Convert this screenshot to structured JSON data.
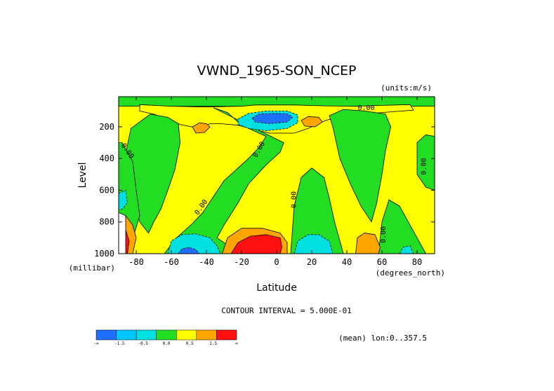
{
  "chart_data": {
    "type": "heatmap",
    "title": "VWND_1965-SON_NCEP",
    "units": "(units:m/s)",
    "xlabel": "Latitude",
    "xunits": "(degrees_north)",
    "ylabel": "Level",
    "yunits": "(millibar)",
    "x_ticks": [
      -80,
      -60,
      -40,
      -20,
      0,
      20,
      40,
      60,
      80
    ],
    "x_tick_labels": [
      "-80",
      "-60",
      "-40",
      "-20",
      "0",
      "20",
      "40",
      "60",
      "80"
    ],
    "y_ticks": [
      200,
      400,
      600,
      800,
      1000
    ],
    "y_tick_labels": [
      "200",
      "400",
      "600",
      "800",
      "1000"
    ],
    "xlim": [
      -90,
      90
    ],
    "ylim": [
      1000,
      10
    ],
    "contour_interval_text": "CONTOUR INTERVAL = 5.000E-01",
    "mean_text": "(mean) lon:0..357.5",
    "contour_labels": [
      {
        "text": "0.00",
        "lat": 51,
        "lev": 95,
        "angle": 0
      },
      {
        "text": "0.00",
        "lat": -86,
        "lev": 360,
        "angle": 55
      },
      {
        "text": "0.00",
        "lat": -9,
        "lev": 350,
        "angle": -60
      },
      {
        "text": "0.00",
        "lat": -42,
        "lev": 715,
        "angle": -55
      },
      {
        "text": "0.00",
        "lat": 11,
        "lev": 660,
        "angle": -90
      },
      {
        "text": "0.00",
        "lat": 62,
        "lev": 880,
        "angle": -90
      },
      {
        "text": "0.00",
        "lat": 85,
        "lev": 450,
        "angle": -90
      }
    ],
    "colorbar": {
      "colors": [
        "#1f6fff",
        "#00c8ff",
        "#00e0e0",
        "#22dd22",
        "#ffff00",
        "#ffa500",
        "#ff1010"
      ],
      "labels": [
        "-∞",
        "-1.5",
        "-0.5",
        "0.0",
        "0.5",
        "1.5",
        "∞"
      ]
    },
    "regions": [
      {
        "level": "yellow",
        "color": "#ffff00",
        "shape": "background"
      },
      {
        "level": "green",
        "color": "#22dd22",
        "pts": [
          [
            -90,
            10
          ],
          [
            90,
            10
          ],
          [
            90,
            70
          ],
          [
            -90,
            70
          ]
        ]
      },
      {
        "level": "yellow",
        "color": "#ffff00",
        "pts": [
          [
            -78,
            60
          ],
          [
            -60,
            70
          ],
          [
            -40,
            75
          ],
          [
            -28,
            72
          ],
          [
            -20,
            70
          ],
          [
            -12,
            62
          ],
          [
            10,
            62
          ],
          [
            28,
            68
          ],
          [
            45,
            70
          ],
          [
            60,
            65
          ],
          [
            76,
            60
          ],
          [
            78,
            95
          ],
          [
            60,
            110
          ],
          [
            38,
            130
          ],
          [
            28,
            160
          ],
          [
            18,
            210
          ],
          [
            10,
            240
          ],
          [
            -4,
            240
          ],
          [
            -12,
            220
          ],
          [
            -22,
            190
          ],
          [
            -32,
            180
          ],
          [
            -38,
            180
          ],
          [
            -44,
            210
          ],
          [
            -55,
            185
          ],
          [
            -62,
            150
          ],
          [
            -70,
            120
          ],
          [
            -78,
            100
          ]
        ]
      },
      {
        "level": "green",
        "color": "#22dd22",
        "pts": [
          [
            -83,
            210
          ],
          [
            -72,
            120
          ],
          [
            -62,
            140
          ],
          [
            -56,
            180
          ],
          [
            -55,
            300
          ],
          [
            -58,
            470
          ],
          [
            -62,
            600
          ],
          [
            -66,
            720
          ],
          [
            -70,
            800
          ],
          [
            -73,
            870
          ],
          [
            -78,
            800
          ],
          [
            -82,
            640
          ],
          [
            -87,
            420
          ]
        ]
      },
      {
        "level": "green",
        "color": "#22dd22",
        "pts": [
          [
            -88,
            300
          ],
          [
            -82,
            420
          ],
          [
            -80,
            600
          ],
          [
            -78,
            760
          ],
          [
            -84,
            980
          ],
          [
            -90,
            1000
          ],
          [
            -90,
            300
          ]
        ]
      },
      {
        "level": "green",
        "color": "#22dd22",
        "pts": [
          [
            -36,
            80
          ],
          [
            -28,
            110
          ],
          [
            -20,
            190
          ],
          [
            -12,
            230
          ],
          [
            -6,
            260
          ],
          [
            -10,
            330
          ],
          [
            -16,
            400
          ],
          [
            -22,
            460
          ],
          [
            -30,
            540
          ],
          [
            -36,
            640
          ],
          [
            -42,
            740
          ],
          [
            -48,
            810
          ],
          [
            -52,
            850
          ],
          [
            -57,
            900
          ],
          [
            -64,
            1000
          ],
          [
            -10,
            1000
          ],
          [
            -26,
            960
          ],
          [
            -34,
            900
          ],
          [
            -30,
            820
          ],
          [
            -22,
            680
          ],
          [
            -16,
            560
          ],
          [
            -6,
            440
          ],
          [
            2,
            360
          ],
          [
            4,
            300
          ]
        ]
      },
      {
        "level": "green",
        "color": "#22dd22",
        "pts": [
          [
            8,
            1000
          ],
          [
            10,
            700
          ],
          [
            14,
            520
          ],
          [
            20,
            460
          ],
          [
            27,
            520
          ],
          [
            30,
            650
          ],
          [
            33,
            800
          ],
          [
            36,
            920
          ],
          [
            38,
            1000
          ]
        ]
      },
      {
        "level": "green",
        "color": "#22dd22",
        "pts": [
          [
            32,
            200
          ],
          [
            30,
            130
          ],
          [
            38,
            90
          ],
          [
            50,
            100
          ],
          [
            62,
            120
          ],
          [
            65,
            200
          ],
          [
            62,
            350
          ],
          [
            60,
            500
          ],
          [
            57,
            680
          ],
          [
            54,
            800
          ],
          [
            48,
            700
          ],
          [
            42,
            560
          ],
          [
            36,
            400
          ]
        ]
      },
      {
        "level": "green",
        "color": "#22dd22",
        "pts": [
          [
            58,
            1000
          ],
          [
            60,
            800
          ],
          [
            64,
            660
          ],
          [
            70,
            700
          ],
          [
            76,
            820
          ],
          [
            82,
            940
          ],
          [
            85,
            1000
          ]
        ]
      },
      {
        "level": "green",
        "color": "#22dd22",
        "pts": [
          [
            80,
            300
          ],
          [
            85,
            250
          ],
          [
            90,
            260
          ],
          [
            90,
            600
          ],
          [
            85,
            580
          ],
          [
            80,
            500
          ]
        ]
      },
      {
        "level": "orange",
        "color": "#ffa500",
        "pts": [
          [
            -48,
            200
          ],
          [
            -44,
            175
          ],
          [
            -40,
            180
          ],
          [
            -38,
            200
          ],
          [
            -41,
            235
          ],
          [
            -46,
            240
          ]
        ]
      },
      {
        "level": "orange",
        "color": "#ffa500",
        "pts": [
          [
            14,
            160
          ],
          [
            18,
            135
          ],
          [
            24,
            140
          ],
          [
            26,
            170
          ],
          [
            22,
            200
          ],
          [
            16,
            195
          ]
        ]
      },
      {
        "level": "orange",
        "color": "#ffa500",
        "pts": [
          [
            45,
            1000
          ],
          [
            46,
            900
          ],
          [
            50,
            870
          ],
          [
            56,
            880
          ],
          [
            59,
            960
          ],
          [
            58,
            1000
          ]
        ]
      },
      {
        "level": "orange",
        "color": "#ffa500",
        "pts": [
          [
            -31,
            1000
          ],
          [
            -28,
            900
          ],
          [
            -20,
            840
          ],
          [
            -8,
            840
          ],
          [
            2,
            870
          ],
          [
            6,
            930
          ],
          [
            6,
            1000
          ]
        ]
      },
      {
        "level": "red",
        "color": "#ff1010",
        "pts": [
          [
            -26,
            1000
          ],
          [
            -22,
            930
          ],
          [
            -15,
            890
          ],
          [
            -6,
            880
          ],
          [
            2,
            900
          ],
          [
            3,
            960
          ],
          [
            2,
            1000
          ]
        ]
      },
      {
        "level": "cyan",
        "color": "#00e0e0",
        "pts": [
          [
            -22,
            150
          ],
          [
            -16,
            115
          ],
          [
            -6,
            100
          ],
          [
            6,
            100
          ],
          [
            12,
            125
          ],
          [
            12,
            175
          ],
          [
            6,
            210
          ],
          [
            -6,
            225
          ],
          [
            -16,
            210
          ],
          [
            -22,
            185
          ]
        ]
      },
      {
        "level": "blue",
        "color": "#1f6fff",
        "pts": [
          [
            -14,
            145
          ],
          [
            -10,
            120
          ],
          [
            -2,
            115
          ],
          [
            6,
            118
          ],
          [
            9,
            140
          ],
          [
            6,
            170
          ],
          [
            -4,
            180
          ],
          [
            -12,
            170
          ]
        ]
      },
      {
        "level": "cyan",
        "color": "#00e0e0",
        "pts": [
          [
            -62,
            1000
          ],
          [
            -60,
            920
          ],
          [
            -54,
            880
          ],
          [
            -46,
            875
          ],
          [
            -38,
            900
          ],
          [
            -34,
            950
          ],
          [
            -32,
            1000
          ]
        ]
      },
      {
        "level": "blue",
        "color": "#1f6fff",
        "pts": [
          [
            -56,
            1000
          ],
          [
            -54,
            970
          ],
          [
            -50,
            960
          ],
          [
            -46,
            975
          ],
          [
            -44,
            1000
          ]
        ]
      },
      {
        "level": "cyan",
        "color": "#00e0e0",
        "pts": [
          [
            10,
            1000
          ],
          [
            12,
            920
          ],
          [
            18,
            880
          ],
          [
            24,
            880
          ],
          [
            30,
            920
          ],
          [
            32,
            1000
          ]
        ]
      },
      {
        "level": "cyan",
        "color": "#00e0e0",
        "pts": [
          [
            70,
            1000
          ],
          [
            72,
            960
          ],
          [
            76,
            950
          ],
          [
            78,
            1000
          ]
        ]
      },
      {
        "level": "cyan",
        "color": "#00e0e0",
        "pts": [
          [
            -90,
            620
          ],
          [
            -86,
            600
          ],
          [
            -85,
            680
          ],
          [
            -88,
            720
          ],
          [
            -90,
            720
          ]
        ]
      },
      {
        "level": "orange",
        "color": "#ffa500",
        "pts": [
          [
            -90,
            780
          ],
          [
            -86,
            760
          ],
          [
            -82,
            820
          ],
          [
            -80,
            900
          ],
          [
            -82,
            1000
          ],
          [
            -90,
            1000
          ]
        ]
      },
      {
        "level": "red",
        "color": "#ff1010",
        "pts": [
          [
            -90,
            860
          ],
          [
            -86,
            850
          ],
          [
            -84,
            920
          ],
          [
            -85,
            1000
          ],
          [
            -90,
            1000
          ]
        ]
      },
      {
        "level": "darkred",
        "color": "#8b1010",
        "pts": [
          [
            -90,
            920
          ],
          [
            -87,
            910
          ],
          [
            -86,
            1000
          ],
          [
            -90,
            1000
          ]
        ]
      },
      {
        "level": "white",
        "color": "#ffffff",
        "pts": [
          [
            -90,
            740
          ],
          [
            -86,
            760
          ],
          [
            -86,
            1000
          ],
          [
            -90,
            1000
          ]
        ]
      }
    ]
  }
}
